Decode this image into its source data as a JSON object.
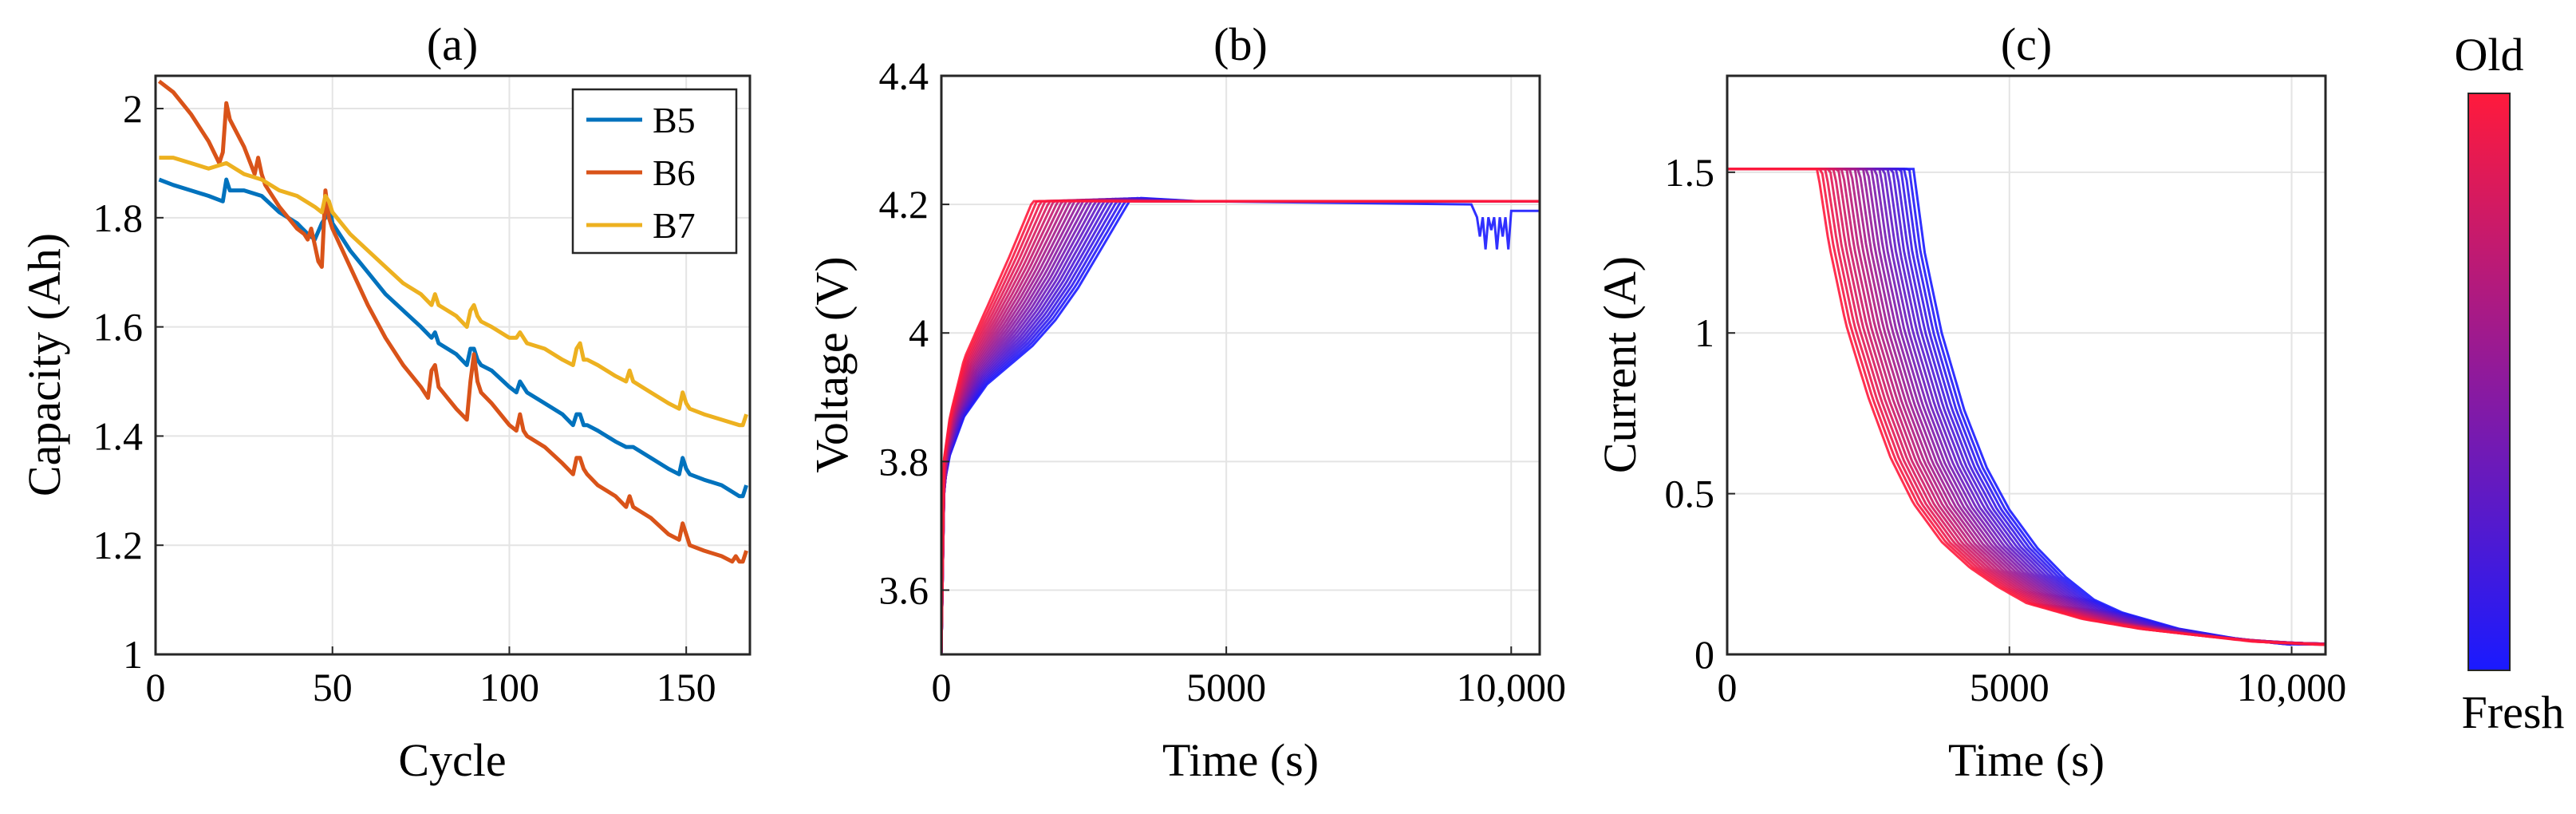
{
  "chart_data": [
    {
      "type": "line",
      "title": "(a)",
      "xlabel": "Cycle",
      "ylabel": "Capacity (Ah)",
      "xlim": [
        0,
        168
      ],
      "ylim": [
        1.0,
        2.06
      ],
      "xticks": [
        0,
        50,
        100,
        150
      ],
      "xtick_labels": [
        "0",
        "50",
        "100",
        "150"
      ],
      "yticks": [
        1.0,
        1.2,
        1.4,
        1.6,
        1.8,
        2.0
      ],
      "ytick_labels": [
        "1",
        "1.2",
        "1.4",
        "1.6",
        "1.8",
        "2"
      ],
      "grid": true,
      "legend": "top-right",
      "series": [
        {
          "name": "B5",
          "color": "#0072BD",
          "x": [
            1,
            5,
            10,
            15,
            19,
            20,
            21,
            25,
            30,
            35,
            40,
            43,
            45,
            47,
            48,
            49,
            50,
            55,
            60,
            65,
            70,
            75,
            78,
            79,
            80,
            85,
            88,
            89,
            90,
            91,
            92,
            95,
            100,
            102,
            103,
            104,
            105,
            110,
            115,
            118,
            119,
            120,
            121,
            122,
            125,
            130,
            133,
            135,
            140,
            145,
            148,
            149,
            150,
            151,
            155,
            160,
            165,
            166,
            167
          ],
          "y": [
            1.87,
            1.86,
            1.85,
            1.84,
            1.83,
            1.87,
            1.85,
            1.85,
            1.84,
            1.81,
            1.79,
            1.77,
            1.76,
            1.79,
            1.8,
            1.83,
            1.79,
            1.74,
            1.7,
            1.66,
            1.63,
            1.6,
            1.58,
            1.59,
            1.57,
            1.55,
            1.53,
            1.56,
            1.56,
            1.54,
            1.53,
            1.52,
            1.49,
            1.48,
            1.5,
            1.49,
            1.48,
            1.46,
            1.44,
            1.42,
            1.44,
            1.44,
            1.42,
            1.42,
            1.41,
            1.39,
            1.38,
            1.38,
            1.36,
            1.34,
            1.33,
            1.36,
            1.34,
            1.33,
            1.32,
            1.31,
            1.29,
            1.29,
            1.31
          ]
        },
        {
          "name": "B6",
          "color": "#D95319",
          "x": [
            1,
            5,
            10,
            15,
            18,
            19,
            20,
            21,
            25,
            28,
            29,
            30,
            31,
            35,
            40,
            42,
            43,
            44,
            45,
            46,
            47,
            48,
            49,
            50,
            55,
            60,
            65,
            70,
            75,
            77,
            78,
            79,
            80,
            85,
            88,
            89,
            90,
            91,
            92,
            95,
            100,
            102,
            103,
            104,
            105,
            110,
            115,
            118,
            119,
            120,
            121,
            122,
            125,
            130,
            133,
            134,
            135,
            140,
            145,
            148,
            149,
            150,
            151,
            155,
            160,
            163,
            164,
            165,
            166,
            167
          ],
          "y": [
            2.05,
            2.03,
            1.99,
            1.94,
            1.9,
            1.92,
            2.01,
            1.98,
            1.93,
            1.88,
            1.91,
            1.88,
            1.86,
            1.82,
            1.78,
            1.77,
            1.76,
            1.78,
            1.75,
            1.72,
            1.71,
            1.85,
            1.8,
            1.78,
            1.71,
            1.64,
            1.58,
            1.53,
            1.49,
            1.47,
            1.52,
            1.53,
            1.49,
            1.45,
            1.43,
            1.5,
            1.55,
            1.5,
            1.48,
            1.46,
            1.42,
            1.41,
            1.44,
            1.41,
            1.4,
            1.38,
            1.35,
            1.33,
            1.36,
            1.36,
            1.34,
            1.33,
            1.31,
            1.29,
            1.27,
            1.29,
            1.27,
            1.25,
            1.22,
            1.21,
            1.24,
            1.22,
            1.2,
            1.19,
            1.18,
            1.17,
            1.18,
            1.17,
            1.17,
            1.19
          ]
        },
        {
          "name": "B7",
          "color": "#EDB120",
          "x": [
            1,
            5,
            10,
            15,
            20,
            25,
            30,
            35,
            40,
            45,
            47,
            48,
            49,
            50,
            55,
            60,
            65,
            70,
            75,
            78,
            79,
            80,
            85,
            88,
            89,
            90,
            91,
            92,
            95,
            100,
            102,
            103,
            104,
            105,
            110,
            115,
            118,
            119,
            120,
            121,
            122,
            125,
            130,
            133,
            134,
            135,
            140,
            145,
            148,
            149,
            150,
            151,
            155,
            160,
            165,
            166,
            167
          ],
          "y": [
            1.91,
            1.91,
            1.9,
            1.89,
            1.9,
            1.88,
            1.87,
            1.85,
            1.84,
            1.82,
            1.81,
            1.84,
            1.83,
            1.81,
            1.77,
            1.74,
            1.71,
            1.68,
            1.66,
            1.64,
            1.66,
            1.64,
            1.62,
            1.6,
            1.63,
            1.64,
            1.62,
            1.61,
            1.6,
            1.58,
            1.58,
            1.59,
            1.58,
            1.57,
            1.56,
            1.54,
            1.53,
            1.56,
            1.57,
            1.54,
            1.54,
            1.53,
            1.51,
            1.5,
            1.52,
            1.5,
            1.48,
            1.46,
            1.45,
            1.48,
            1.46,
            1.45,
            1.44,
            1.43,
            1.42,
            1.42,
            1.44
          ]
        }
      ]
    },
    {
      "type": "line",
      "title": "(b)",
      "xlabel": "Time (s)",
      "ylabel": "Voltage (V)",
      "xlim": [
        0,
        10500
      ],
      "ylim": [
        3.5,
        4.4
      ],
      "xticks": [
        0,
        5000,
        10000
      ],
      "xtick_labels": [
        "0",
        "5000",
        "10,000"
      ],
      "yticks": [
        3.6,
        3.8,
        4.0,
        4.2,
        4.4
      ],
      "ytick_labels": [
        "3.6",
        "3.8",
        "4",
        "4.2",
        "4.4"
      ],
      "grid": true,
      "colormap": {
        "fresh": "#1a1aff",
        "old": "#ff1a3c"
      },
      "num_curves": 24,
      "series": [
        {
          "name": "fresh",
          "x": [
            0,
            40,
            150,
            400,
            800,
            1200,
            1600,
            2000,
            2400,
            2800,
            3300,
            3500,
            4500,
            9300,
            9400,
            9450,
            9500,
            9550,
            9600,
            9650,
            9700,
            9750,
            9800,
            9850,
            9900,
            9950,
            10000,
            10500
          ],
          "y": [
            3.5,
            3.76,
            3.81,
            3.87,
            3.92,
            3.95,
            3.98,
            4.02,
            4.07,
            4.13,
            4.205,
            4.21,
            4.205,
            4.2,
            4.18,
            4.15,
            4.18,
            4.13,
            4.18,
            4.16,
            4.18,
            4.13,
            4.18,
            4.15,
            4.18,
            4.13,
            4.19,
            4.19
          ]
        },
        {
          "name": "old",
          "x": [
            0,
            40,
            150,
            400,
            800,
            1200,
            1600,
            10500
          ],
          "y": [
            3.5,
            3.8,
            3.87,
            3.96,
            4.04,
            4.12,
            4.205,
            4.205
          ]
        }
      ]
    },
    {
      "type": "line",
      "title": "(c)",
      "xlabel": "Time (s)",
      "ylabel": "Current (A)",
      "xlim": [
        0,
        10600
      ],
      "ylim": [
        0,
        1.8
      ],
      "xticks": [
        0,
        5000,
        10000
      ],
      "xtick_labels": [
        "0",
        "5000",
        "10,000"
      ],
      "yticks": [
        0,
        0.5,
        1.0,
        1.5
      ],
      "ytick_labels": [
        "0",
        "0.5",
        "1",
        "1.5"
      ],
      "grid": true,
      "colormap": {
        "fresh": "#1a1aff",
        "old": "#ff1a3c"
      },
      "num_curves": 24,
      "series": [
        {
          "name": "fresh",
          "x": [
            0,
            3300,
            3500,
            3800,
            4200,
            4600,
            5000,
            5500,
            6000,
            6500,
            7000,
            8000,
            9000,
            10000
          ],
          "y": [
            1.51,
            1.51,
            1.25,
            1.0,
            0.76,
            0.58,
            0.45,
            0.33,
            0.24,
            0.17,
            0.13,
            0.08,
            0.05,
            0.03
          ]
        },
        {
          "name": "old",
          "x": [
            0,
            1600,
            1800,
            2100,
            2500,
            2900,
            3300,
            3800,
            4300,
            4800,
            5300,
            6300,
            7300,
            8300,
            9300,
            10500
          ],
          "y": [
            1.51,
            1.51,
            1.28,
            1.03,
            0.8,
            0.61,
            0.47,
            0.35,
            0.27,
            0.21,
            0.16,
            0.11,
            0.08,
            0.06,
            0.04,
            0.03
          ]
        }
      ]
    }
  ],
  "colorbar": {
    "top_label": "Old",
    "bottom_label": "Fresh",
    "top_color": "#ff1a3c",
    "bottom_color": "#1a1aff"
  }
}
